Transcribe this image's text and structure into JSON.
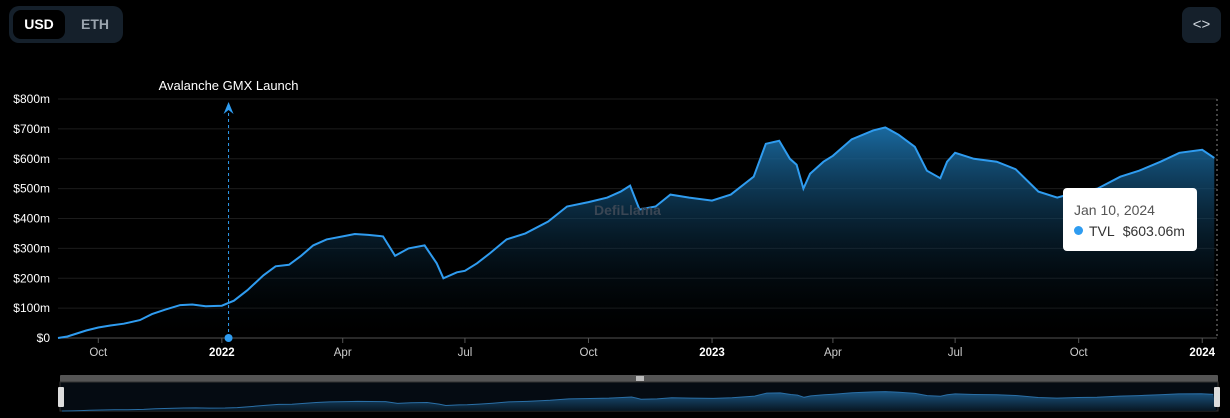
{
  "currency_toggle": {
    "active": "USD",
    "inactive": "ETH"
  },
  "embed_button": {
    "label": "<>"
  },
  "watermark": "DefiLlama",
  "tooltip": {
    "date": "Jan 10, 2024",
    "series": "TVL",
    "value": "$603.06m"
  },
  "colors": {
    "line": "#2f9cf0",
    "area": "#1b6fa8",
    "background": "#000000"
  },
  "chart_data": {
    "type": "area",
    "y_unit": "USD",
    "ylim": [
      0,
      800
    ],
    "y_ticks": [
      {
        "value": 0,
        "label": "$0"
      },
      {
        "value": 100,
        "label": "$100m"
      },
      {
        "value": 200,
        "label": "$200m"
      },
      {
        "value": 300,
        "label": "$300m"
      },
      {
        "value": 400,
        "label": "$400m"
      },
      {
        "value": 500,
        "label": "$500m"
      },
      {
        "value": 600,
        "label": "$600m"
      },
      {
        "value": 700,
        "label": "$700m"
      },
      {
        "value": 800,
        "label": "$800m"
      }
    ],
    "x_ticks": [
      {
        "date": "2021-10-01",
        "label": "Oct",
        "bold": false
      },
      {
        "date": "2022-01-01",
        "label": "2022",
        "bold": true
      },
      {
        "date": "2022-04-01",
        "label": "Apr",
        "bold": false
      },
      {
        "date": "2022-07-01",
        "label": "Jul",
        "bold": false
      },
      {
        "date": "2022-10-01",
        "label": "Oct",
        "bold": false
      },
      {
        "date": "2023-01-01",
        "label": "2023",
        "bold": true
      },
      {
        "date": "2023-04-01",
        "label": "Apr",
        "bold": false
      },
      {
        "date": "2023-07-01",
        "label": "Jul",
        "bold": false
      },
      {
        "date": "2023-10-01",
        "label": "Oct",
        "bold": false
      },
      {
        "date": "2024-01-01",
        "label": "2024",
        "bold": true
      }
    ],
    "grid": true,
    "annotation": {
      "date": "2022-01-06",
      "label": "Avalanche GMX Launch"
    },
    "series": [
      {
        "name": "TVL",
        "points": [
          [
            "2021-09-01",
            0
          ],
          [
            "2021-09-08",
            5
          ],
          [
            "2021-09-15",
            15
          ],
          [
            "2021-09-22",
            25
          ],
          [
            "2021-10-01",
            35
          ],
          [
            "2021-10-10",
            42
          ],
          [
            "2021-10-20",
            48
          ],
          [
            "2021-11-01",
            60
          ],
          [
            "2021-11-10",
            80
          ],
          [
            "2021-11-20",
            95
          ],
          [
            "2021-12-01",
            110
          ],
          [
            "2021-12-10",
            112
          ],
          [
            "2021-12-20",
            106
          ],
          [
            "2022-01-01",
            108
          ],
          [
            "2022-01-10",
            125
          ],
          [
            "2022-01-20",
            160
          ],
          [
            "2022-02-01",
            210
          ],
          [
            "2022-02-10",
            240
          ],
          [
            "2022-02-20",
            245
          ],
          [
            "2022-03-01",
            275
          ],
          [
            "2022-03-10",
            310
          ],
          [
            "2022-03-20",
            330
          ],
          [
            "2022-04-01",
            340
          ],
          [
            "2022-04-10",
            348
          ],
          [
            "2022-04-20",
            345
          ],
          [
            "2022-05-01",
            340
          ],
          [
            "2022-05-10",
            275
          ],
          [
            "2022-05-20",
            300
          ],
          [
            "2022-06-01",
            310
          ],
          [
            "2022-06-10",
            250
          ],
          [
            "2022-06-15",
            200
          ],
          [
            "2022-06-25",
            220
          ],
          [
            "2022-07-01",
            225
          ],
          [
            "2022-07-10",
            250
          ],
          [
            "2022-07-20",
            285
          ],
          [
            "2022-08-01",
            330
          ],
          [
            "2022-08-15",
            350
          ],
          [
            "2022-09-01",
            390
          ],
          [
            "2022-09-15",
            440
          ],
          [
            "2022-10-01",
            455
          ],
          [
            "2022-10-15",
            470
          ],
          [
            "2022-10-25",
            490
          ],
          [
            "2022-11-01",
            510
          ],
          [
            "2022-11-08",
            430
          ],
          [
            "2022-11-20",
            440
          ],
          [
            "2022-12-01",
            480
          ],
          [
            "2022-12-15",
            470
          ],
          [
            "2023-01-01",
            460
          ],
          [
            "2023-01-15",
            480
          ],
          [
            "2023-02-01",
            540
          ],
          [
            "2023-02-10",
            650
          ],
          [
            "2023-02-20",
            660
          ],
          [
            "2023-02-28",
            600
          ],
          [
            "2023-03-05",
            580
          ],
          [
            "2023-03-10",
            500
          ],
          [
            "2023-03-15",
            550
          ],
          [
            "2023-03-25",
            590
          ],
          [
            "2023-04-01",
            610
          ],
          [
            "2023-04-15",
            665
          ],
          [
            "2023-05-01",
            695
          ],
          [
            "2023-05-10",
            705
          ],
          [
            "2023-05-20",
            680
          ],
          [
            "2023-06-01",
            640
          ],
          [
            "2023-06-10",
            560
          ],
          [
            "2023-06-20",
            535
          ],
          [
            "2023-06-25",
            590
          ],
          [
            "2023-07-01",
            620
          ],
          [
            "2023-07-15",
            600
          ],
          [
            "2023-08-01",
            590
          ],
          [
            "2023-08-15",
            565
          ],
          [
            "2023-09-01",
            490
          ],
          [
            "2023-09-15",
            470
          ],
          [
            "2023-10-01",
            490
          ],
          [
            "2023-10-15",
            500
          ],
          [
            "2023-11-01",
            540
          ],
          [
            "2023-11-15",
            560
          ],
          [
            "2023-12-01",
            590
          ],
          [
            "2023-12-15",
            620
          ],
          [
            "2024-01-01",
            630
          ],
          [
            "2024-01-10",
            603
          ]
        ]
      }
    ]
  }
}
